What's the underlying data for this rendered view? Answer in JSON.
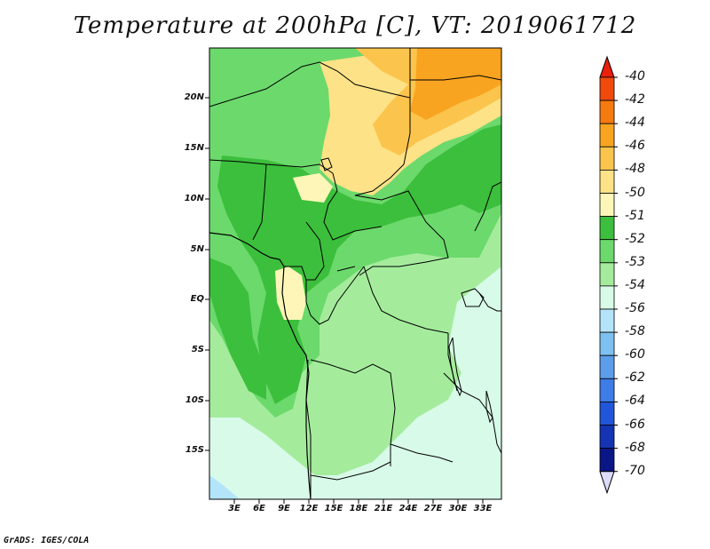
{
  "title": "Temperature at 200hPa [C], VT: 2019061712",
  "credit": "GrADS: IGES/COLA",
  "map": {
    "lat_labels": [
      "20N",
      "15N",
      "10N",
      "5N",
      "EQ",
      "5S",
      "10S",
      "15S"
    ],
    "lon_labels": [
      "3E",
      "6E",
      "9E",
      "12E",
      "15E",
      "18E",
      "21E",
      "24E",
      "27E",
      "30E",
      "33E"
    ]
  },
  "colorbar": {
    "levels": [
      "-40",
      "-42",
      "-44",
      "-46",
      "-48",
      "-50",
      "-51",
      "-52",
      "-53",
      "-54",
      "-56",
      "-58",
      "-60",
      "-62",
      "-64",
      "-66",
      "-68",
      "-70"
    ],
    "colors": [
      "#e8200c",
      "#f04a0c",
      "#f57a10",
      "#f9a420",
      "#fbc44c",
      "#fde287",
      "#fdf6b8",
      "#3cbf3c",
      "#6cd96c",
      "#a4ec9c",
      "#d8fae8",
      "#b4e4fa",
      "#7ec0f0",
      "#5c9eea",
      "#3e7ce6",
      "#2256d8",
      "#1434b4",
      "#0a1686",
      "#dcdcfa"
    ]
  },
  "regions": [
    "pale-cyan",
    "light-green",
    "medium-green",
    "dark-green",
    "pale-yellow",
    "light-orange",
    "orange",
    "light-blue"
  ]
}
